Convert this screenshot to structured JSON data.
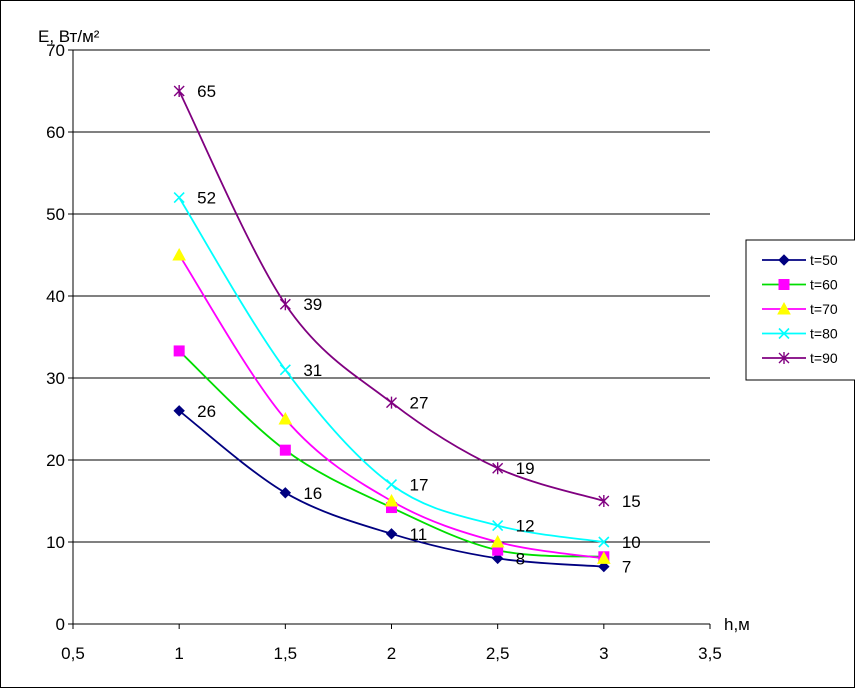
{
  "chart_data": {
    "type": "line",
    "xlabel": "h,м",
    "ylabel": "E, Вт/м²",
    "xlim": [
      0.5,
      3.5
    ],
    "ylim": [
      0,
      70
    ],
    "x_ticks": [
      {
        "value": 0.5,
        "label": "0,5"
      },
      {
        "value": 1,
        "label": "1"
      },
      {
        "value": 1.5,
        "label": "1,5"
      },
      {
        "value": 2,
        "label": "2"
      },
      {
        "value": 2.5,
        "label": "2,5"
      },
      {
        "value": 3,
        "label": "3"
      },
      {
        "value": 3.5,
        "label": "3,5"
      }
    ],
    "y_ticks": [
      0,
      10,
      20,
      30,
      40,
      50,
      60,
      70
    ],
    "grid": "horizontal",
    "legend_position": "right",
    "x": [
      1,
      1.5,
      2,
      2.5,
      3
    ],
    "series": [
      {
        "name": "t=50",
        "color": "#000080",
        "marker": "diamond",
        "values": [
          26,
          16,
          11,
          8,
          7
        ],
        "labels": [
          "26",
          "16",
          "11",
          "8",
          "7"
        ]
      },
      {
        "name": "t=60",
        "color": "#00dd00",
        "marker_color": "#ff00ff",
        "marker": "square",
        "values": [
          33.3,
          21.2,
          14.2,
          9,
          8.2
        ],
        "labels": []
      },
      {
        "name": "t=70",
        "color": "#ff00ff",
        "marker_color": "#ffff00",
        "marker": "triangle",
        "values": [
          45,
          25,
          15,
          10,
          8
        ],
        "labels": []
      },
      {
        "name": "t=80",
        "color": "#00ffff",
        "marker": "x",
        "values": [
          52,
          31,
          17,
          12,
          10
        ],
        "labels": [
          "52",
          "31",
          "17",
          "12",
          "10"
        ]
      },
      {
        "name": "t=90",
        "color": "#800080",
        "marker": "star",
        "values": [
          65,
          39,
          27,
          19,
          15
        ],
        "labels": [
          "65",
          "39",
          "27",
          "19",
          "15"
        ]
      }
    ]
  }
}
